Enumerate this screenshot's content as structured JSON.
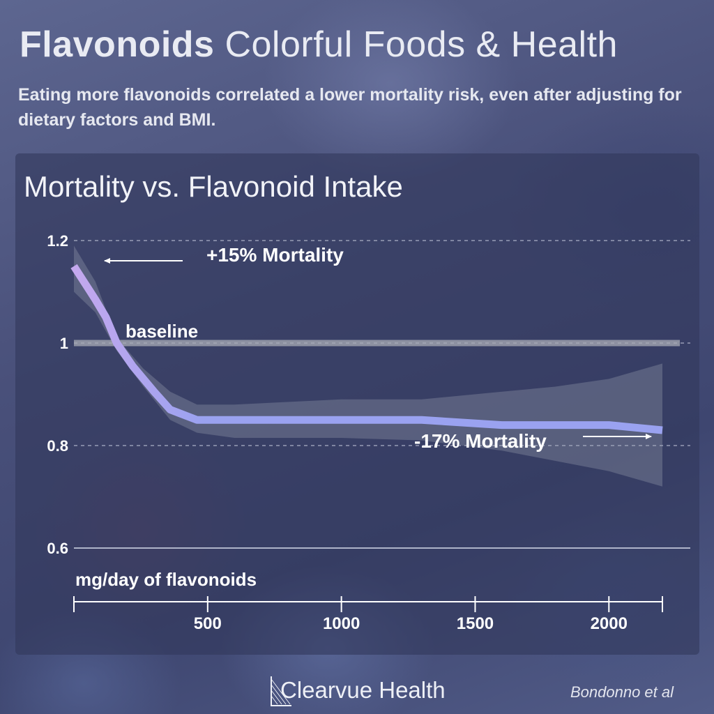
{
  "header": {
    "title_bold": "Flavonoids",
    "title_light": "Colorful Foods & Health",
    "subtitle": "Eating more flavonoids correlated a lower mortality risk, even after adjusting for dietary factors and BMI."
  },
  "chart_data": {
    "type": "line",
    "title": "Mortality vs. Flavonoid Intake",
    "xlabel": "mg/day of flavonoids",
    "ylabel": "",
    "xlim": [
      0,
      2200
    ],
    "ylim": [
      0.6,
      1.2
    ],
    "x_ticks": [
      500,
      1000,
      1500,
      2000
    ],
    "y_ticks": [
      0.6,
      0.8,
      1,
      1.2
    ],
    "y_tick_labels": [
      "0.6",
      "0.8",
      "1",
      "1.2"
    ],
    "grid": "horizontal dashed",
    "baseline": {
      "label": "baseline",
      "value": 1.0
    },
    "series": [
      {
        "x": [
          0,
          80,
          120,
          160,
          220,
          260,
          300,
          360,
          460,
          600,
          1000,
          1300,
          1600,
          2000,
          2200
        ],
        "values": [
          1.15,
          1.085,
          1.05,
          1.0,
          0.955,
          0.93,
          0.905,
          0.87,
          0.85,
          0.85,
          0.85,
          0.85,
          0.84,
          0.84,
          0.83
        ],
        "color": "#9aa2f0",
        "start_color": "#c4a8ee"
      }
    ],
    "confidence_band": {
      "x": [
        0,
        80,
        160,
        260,
        360,
        460,
        600,
        1000,
        1300,
        1600,
        1800,
        2000,
        2200
      ],
      "upper": [
        1.19,
        1.12,
        1.01,
        0.95,
        0.905,
        0.88,
        0.88,
        0.89,
        0.89,
        0.905,
        0.915,
        0.93,
        0.96
      ],
      "lower": [
        1.1,
        1.06,
        0.985,
        0.915,
        0.85,
        0.825,
        0.815,
        0.815,
        0.81,
        0.79,
        0.77,
        0.75,
        0.72
      ]
    },
    "annotations": [
      {
        "text": "+15% Mortality",
        "arrow": "left"
      },
      {
        "text": "-17% Mortality",
        "arrow": "right"
      }
    ]
  },
  "footer": {
    "brand": "Clearvue Health",
    "citation": "Bondonno et al"
  }
}
